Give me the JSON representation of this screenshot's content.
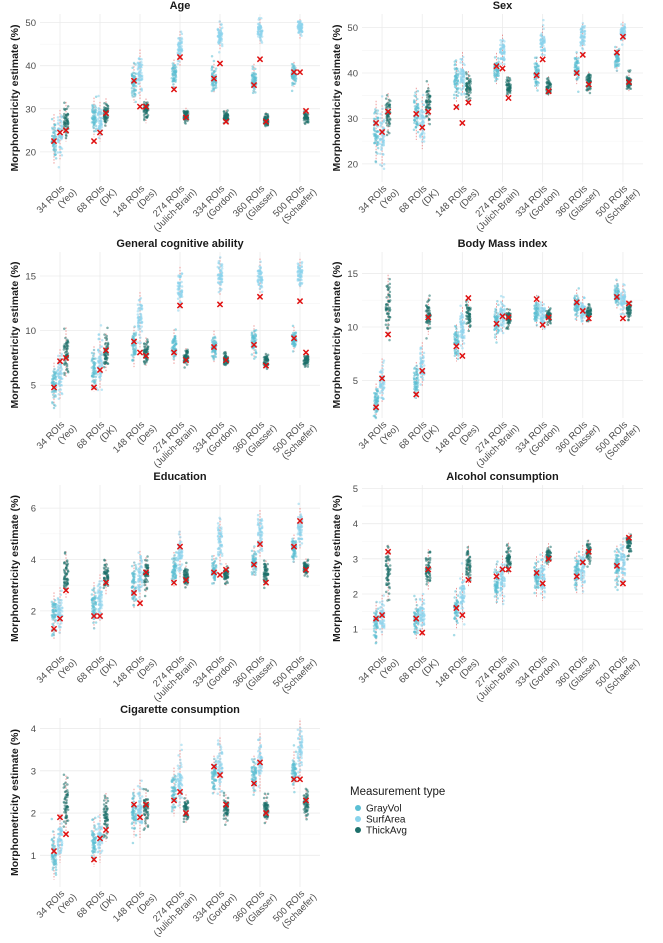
{
  "legend": {
    "title": "Measurement type",
    "items": [
      {
        "name": "GrayVol",
        "color": "#5bbfd4"
      },
      {
        "name": "SurfArea",
        "color": "#8ad4ec"
      },
      {
        "name": "ThickAvg",
        "color": "#1c6f6a"
      }
    ]
  },
  "chart_data": [
    {
      "type": "scatter",
      "title": "Age",
      "ylabel": "Morphometricity estimate (%)",
      "categories": [
        "34 ROIs\n(Yeo)",
        "68 ROIs\n(DK)",
        "148 ROIs\n(Des)",
        "274 ROIs\n(Julich-Brain)",
        "334 ROIs\n(Gordon)",
        "360 ROIs\n(Glasser)",
        "500 ROIs\n(Schaefer)"
      ],
      "ylim": [
        13,
        52
      ],
      "yticks": [
        20,
        30,
        40,
        50
      ],
      "series": [
        {
          "name": "GrayVol",
          "centers": [
            23,
            28,
            36,
            38,
            37,
            37,
            38
          ],
          "spreads": [
            5,
            4,
            4,
            3,
            3,
            3,
            2.5
          ],
          "estimates": [
            22.5,
            22.5,
            36.5,
            34.5,
            37,
            35.5,
            38.5
          ]
        },
        {
          "name": "SurfArea",
          "centers": [
            24,
            27,
            38,
            44,
            47,
            48,
            48.5
          ],
          "spreads": [
            5,
            4,
            5,
            3.5,
            3,
            2.5,
            2
          ],
          "estimates": [
            24.5,
            24.5,
            30.5,
            42,
            40.5,
            41.5,
            38.5
          ]
        },
        {
          "name": "ThickAvg",
          "centers": [
            27,
            29,
            29.5,
            28.5,
            28,
            27.5,
            28
          ],
          "spreads": [
            4,
            3,
            2.5,
            1.5,
            1.5,
            1.5,
            1.5
          ],
          "estimates": [
            25,
            29,
            30.5,
            28,
            27,
            27,
            29.5
          ]
        }
      ]
    },
    {
      "type": "scatter",
      "title": "Sex",
      "ylabel": "Morphometricity estimate (%)",
      "categories": [
        "34 ROIs\n(Yeo)",
        "68 ROIs\n(DK)",
        "148 ROIs\n(Des)",
        "274 ROIs\n(Julich-Brain)",
        "334 ROIs\n(Gordon)",
        "360 ROIs\n(Glasser)",
        "500 ROIs\n(Schaefer)"
      ],
      "ylim": [
        16,
        53
      ],
      "yticks": [
        20,
        30,
        40,
        50
      ],
      "series": [
        {
          "name": "GrayVol",
          "centers": [
            27,
            31,
            38,
            41,
            40,
            41,
            43
          ],
          "spreads": [
            6,
            5,
            4,
            3,
            3,
            3,
            2.5
          ],
          "estimates": [
            29,
            31,
            32.5,
            41.5,
            39.5,
            40,
            44.5
          ]
        },
        {
          "name": "SurfArea",
          "centers": [
            26,
            29,
            40,
            45,
            47,
            48,
            49
          ],
          "spreads": [
            6,
            5,
            4,
            3,
            3,
            2.5,
            2
          ],
          "estimates": [
            27,
            28,
            29,
            41,
            43,
            44,
            48
          ]
        },
        {
          "name": "ThickAvg",
          "centers": [
            31,
            33,
            37,
            37,
            37,
            38,
            38
          ],
          "spreads": [
            4,
            4,
            3,
            2,
            2,
            2,
            2
          ],
          "estimates": [
            31.5,
            31.5,
            33.5,
            34.5,
            36,
            37.5,
            38
          ]
        }
      ]
    },
    {
      "type": "scatter",
      "title": "General cognitive ability",
      "ylabel": "Morphometricity estimate (%)",
      "categories": [
        "34 ROIs\n(Yeo)",
        "68 ROIs\n(DK)",
        "148 ROIs\n(Des)",
        "274 ROIs\n(Julich-Brain)",
        "334 ROIs\n(Gordon)",
        "360 ROIs\n(Glasser)",
        "500 ROIs\n(Schaefer)"
      ],
      "ylim": [
        2,
        17.2
      ],
      "yticks": [
        5,
        10,
        15
      ],
      "series": [
        {
          "name": "GrayVol",
          "centers": [
            5,
            6.5,
            8.5,
            8.5,
            8.5,
            9,
            9.2
          ],
          "spreads": [
            1.8,
            1.8,
            1.6,
            1.4,
            1.3,
            1.3,
            1
          ],
          "estimates": [
            4.8,
            4.8,
            9,
            8,
            8.5,
            8.7,
            9.3
          ]
        },
        {
          "name": "SurfArea",
          "centers": [
            6,
            7,
            11,
            14,
            15,
            15,
            15.2
          ],
          "spreads": [
            2,
            2,
            2.2,
            1.6,
            1.5,
            1.4,
            1.2
          ],
          "estimates": [
            7.2,
            6.4,
            8,
            12.3,
            12.4,
            13.1,
            12.7
          ]
        },
        {
          "name": "ThickAvg",
          "centers": [
            8,
            8,
            8,
            7.6,
            7.4,
            7.2,
            7.3
          ],
          "spreads": [
            2,
            1.5,
            1.2,
            0.7,
            0.6,
            0.6,
            0.6
          ],
          "estimates": [
            7.5,
            8.2,
            7.7,
            7.3,
            7.3,
            6.8,
            8
          ]
        }
      ]
    },
    {
      "type": "scatter",
      "title": "Body Mass index",
      "ylabel": "Morphometricity estimate (%)",
      "categories": [
        "34 ROIs\n(Yeo)",
        "68 ROIs\n(DK)",
        "148 ROIs\n(Des)",
        "274 ROIs\n(Julich-Brain)",
        "334 ROIs\n(Gordon)",
        "360 ROIs\n(Glasser)",
        "500 ROIs\n(Schaefer)"
      ],
      "ylim": [
        1.5,
        17
      ],
      "yticks": [
        5,
        10,
        15
      ],
      "series": [
        {
          "name": "GrayVol",
          "centers": [
            3,
            5,
            8.5,
            10.5,
            11.5,
            12,
            13
          ],
          "spreads": [
            1.5,
            1.5,
            1.5,
            1.5,
            1.3,
            1.3,
            1.2
          ],
          "estimates": [
            2.5,
            3.7,
            8.2,
            10.3,
            12.6,
            12.3,
            12.8
          ]
        },
        {
          "name": "SurfArea",
          "centers": [
            5,
            6.5,
            10,
            11,
            11,
            11.5,
            12.5
          ],
          "spreads": [
            1.8,
            1.8,
            1.6,
            1.3,
            1.2,
            1.2,
            1.2
          ],
          "estimates": [
            5.2,
            5.9,
            7.3,
            11,
            10.2,
            11.5,
            10.8
          ]
        },
        {
          "name": "ThickAvg",
          "centers": [
            12,
            11,
            11,
            10.8,
            11,
            11.3,
            11.5
          ],
          "spreads": [
            2.5,
            1.5,
            1.2,
            0.8,
            0.8,
            0.8,
            0.8
          ],
          "estimates": [
            9.3,
            10.9,
            12.7,
            10.9,
            10.9,
            10.8,
            12.2
          ]
        }
      ]
    },
    {
      "type": "scatter",
      "title": "Education",
      "ylabel": "Morphometricity estimate (%)",
      "categories": [
        "34 ROIs\n(Yeo)",
        "68 ROIs\n(DK)",
        "148 ROIs\n(Des)",
        "274 ROIs\n(Julich-Brain)",
        "334 ROIs\n(Gordon)",
        "360 ROIs\n(Glasser)",
        "500 ROIs\n(Schaefer)"
      ],
      "ylim": [
        0.4,
        6.9
      ],
      "yticks": [
        2,
        4,
        6
      ],
      "series": [
        {
          "name": "GrayVol",
          "centers": [
            1.8,
            2.2,
            3,
            3.6,
            3.6,
            3.9,
            4.4
          ],
          "spreads": [
            0.8,
            0.8,
            0.8,
            0.6,
            0.5,
            0.5,
            0.5
          ],
          "estimates": [
            1.3,
            1.8,
            2.7,
            3.1,
            3.5,
            3.8,
            4.5
          ]
        },
        {
          "name": "SurfArea",
          "centers": [
            2,
            2.5,
            3.3,
            4.2,
            4.7,
            5,
            5.2
          ],
          "spreads": [
            0.8,
            0.8,
            0.9,
            0.8,
            0.8,
            0.8,
            0.7
          ],
          "estimates": [
            1.7,
            1.8,
            2.3,
            4.5,
            3.4,
            4.6,
            5.5
          ]
        },
        {
          "name": "ThickAvg",
          "centers": [
            3.4,
            3.3,
            3.4,
            3.3,
            3.4,
            3.5,
            3.7
          ],
          "spreads": [
            0.8,
            0.6,
            0.6,
            0.4,
            0.4,
            0.4,
            0.3
          ],
          "estimates": [
            2.8,
            3.1,
            3.5,
            3.2,
            3.6,
            3.1,
            3.6
          ]
        }
      ]
    },
    {
      "type": "scatter",
      "title": "Alcohol consumption",
      "ylabel": "Morphometricity estimate (%)",
      "categories": [
        "34 ROIs\n(Yeo)",
        "68 ROIs\n(DK)",
        "148 ROIs\n(Des)",
        "274 ROIs\n(Julich-Brain)",
        "334 ROIs\n(Gordon)",
        "360 ROIs\n(Glasser)",
        "500 ROIs\n(Schaefer)"
      ],
      "ylim": [
        0.35,
        5.1
      ],
      "yticks": [
        1,
        2,
        3,
        4,
        5
      ],
      "series": [
        {
          "name": "GrayVol",
          "centers": [
            1.2,
            1.3,
            1.6,
            2.3,
            2.5,
            2.6,
            2.8
          ],
          "spreads": [
            0.5,
            0.5,
            0.5,
            0.5,
            0.5,
            0.5,
            0.5
          ],
          "estimates": [
            1.3,
            1.3,
            1.6,
            2.5,
            2.6,
            2.5,
            2.8
          ]
        },
        {
          "name": "SurfArea",
          "centers": [
            1.4,
            1.4,
            1.9,
            2.4,
            2.5,
            2.7,
            2.9
          ],
          "spreads": [
            0.5,
            0.5,
            0.6,
            0.6,
            0.6,
            0.6,
            0.6
          ],
          "estimates": [
            1.4,
            0.9,
            1.4,
            2.7,
            2.3,
            2.9,
            2.3
          ]
        },
        {
          "name": "ThickAvg",
          "centers": [
            2.6,
            2.7,
            2.8,
            3,
            3.1,
            3.2,
            3.4
          ],
          "spreads": [
            0.7,
            0.5,
            0.5,
            0.4,
            0.3,
            0.3,
            0.3
          ],
          "estimates": [
            3.2,
            2.7,
            2.4,
            2.7,
            3,
            3.2,
            3.6
          ]
        }
      ]
    },
    {
      "type": "scatter",
      "title": "Cigarette consumption",
      "ylabel": "Morphometricity estimate (%)",
      "categories": [
        "34 ROIs\n(Yeo)",
        "68 ROIs\n(DK)",
        "148 ROIs\n(Des)",
        "274 ROIs\n(Julich-Brain)",
        "334 ROIs\n(Gordon)",
        "360 ROIs\n(Glasser)",
        "500 ROIs\n(Schaefer)"
      ],
      "ylim": [
        0.25,
        4.25
      ],
      "yticks": [
        1,
        2,
        3,
        4
      ],
      "series": [
        {
          "name": "GrayVol",
          "centers": [
            1,
            1.3,
            2,
            2.5,
            2.9,
            2.9,
            3
          ],
          "spreads": [
            0.5,
            0.5,
            0.5,
            0.5,
            0.4,
            0.4,
            0.4
          ],
          "estimates": [
            1.1,
            0.9,
            2.2,
            2.3,
            3.1,
            2.7,
            2.8
          ]
        },
        {
          "name": "SurfArea",
          "centers": [
            1.4,
            1.4,
            2.1,
            2.8,
            3.1,
            3.2,
            3.5
          ],
          "spreads": [
            0.5,
            0.5,
            0.6,
            0.6,
            0.6,
            0.6,
            0.6
          ],
          "estimates": [
            1.9,
            1.4,
            1.9,
            2.5,
            2.9,
            3.2,
            2.8
          ]
        },
        {
          "name": "ThickAvg",
          "centers": [
            2.2,
            1.9,
            2.1,
            2.1,
            2.1,
            2.1,
            2.2
          ],
          "spreads": [
            0.6,
            0.5,
            0.4,
            0.3,
            0.3,
            0.3,
            0.3
          ],
          "estimates": [
            1.5,
            1.6,
            2.2,
            2,
            2.2,
            2,
            2.3
          ]
        }
      ]
    }
  ]
}
